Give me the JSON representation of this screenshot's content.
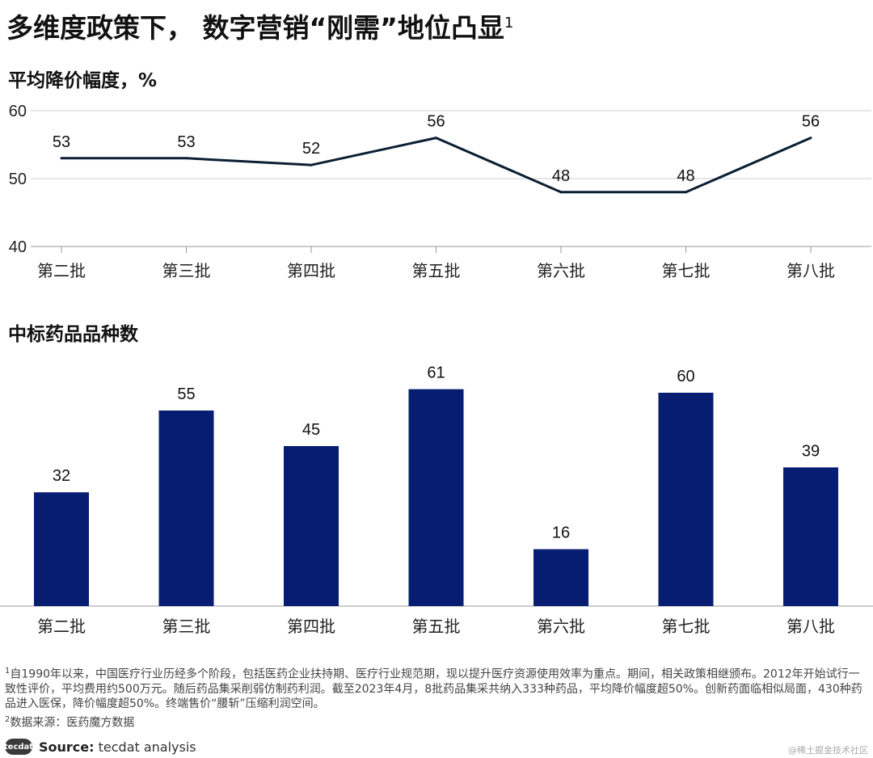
{
  "title": {
    "text": "多维度政策下， 数字营销“刚需”地位凸显",
    "sup": "1"
  },
  "chart_data": [
    {
      "type": "line",
      "title": "平均降价幅度，%",
      "categories": [
        "第二批",
        "第三批",
        "第四批",
        "第五批",
        "第六批",
        "第七批",
        "第八批"
      ],
      "values": [
        53,
        53,
        52,
        56,
        48,
        48,
        56
      ],
      "data_labels": [
        "53",
        "53",
        "52",
        "56",
        "48",
        "48",
        "56"
      ],
      "ylim": [
        40,
        60
      ],
      "yticks": [
        "40",
        "50",
        "60"
      ],
      "grid": true,
      "color": "#0b1f33"
    },
    {
      "type": "bar",
      "title": "中标药品品种数",
      "categories": [
        "第二批",
        "第三批",
        "第四批",
        "第五批",
        "第六批",
        "第七批",
        "第八批"
      ],
      "values": [
        32,
        55,
        45,
        61,
        16,
        60,
        39
      ],
      "data_labels": [
        "32",
        "55",
        "45",
        "61",
        "16",
        "60",
        "39"
      ],
      "ylim": [
        0,
        65
      ],
      "color": "#061d72"
    }
  ],
  "notes": {
    "note1_mark": "1",
    "note1": "自1990年以来，中国医疗行业历经多个阶段，包括医药企业扶持期、医疗行业规范期，现以提升医疗资源使用效率为重点。期间，相关政策相继颁布。2012年开始试行一致性评价，平均费用约500万元。随后药品集采削弱仿制药利润。截至2023年4月，8批药品集采共纳入333种药品，平均降价幅度超50%。创新药面临相似局面，430种药品进入医保，降价幅度超50%。终端售价“腰斩”压缩利润空间。",
    "note2_mark": "2",
    "note2": "数据来源：医药魔方数据"
  },
  "footer": {
    "logo": "tecdat",
    "source_label": "Source:",
    "source_text": "tecdat analysis",
    "watermark": "@稀土掘金技术社区"
  }
}
